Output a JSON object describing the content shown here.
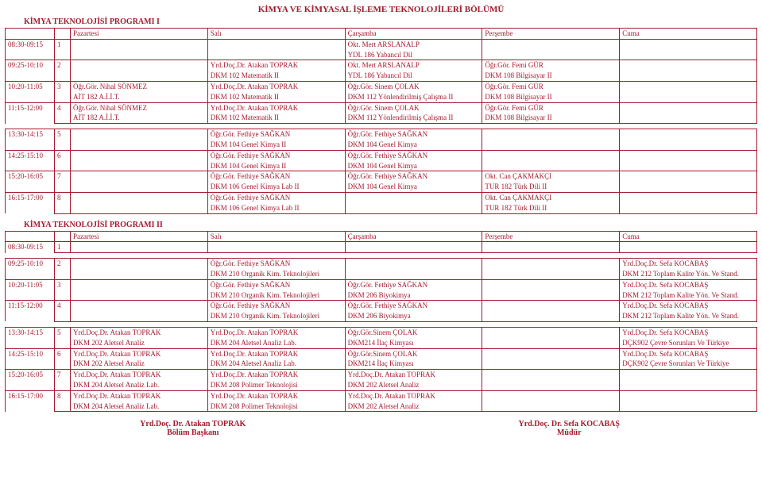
{
  "colors": {
    "ink": "#a6192e",
    "bg": "#ffffff"
  },
  "dept": "KİMYA VE KİMYASAL İŞLEME TEKNOLOJİLERİ BÖLÜMÜ",
  "days": [
    "Pazartesi",
    "Salı",
    "Çarşamba",
    "Perşembe",
    "Cuma"
  ],
  "program1": {
    "title": "KİMYA TEKNOLOJİSİ PROGRAMI  I",
    "blocks": [
      [
        {
          "time": "08:30-09:15",
          "num": "1",
          "cells": [
            [
              "",
              ""
            ],
            [
              "",
              ""
            ],
            [
              "Okt. Mert ARSLANALP",
              "YDL 186 Yabancıl Dil"
            ],
            [
              "",
              ""
            ],
            [
              "",
              ""
            ]
          ]
        },
        {
          "time": "09:25-10:10",
          "num": "2",
          "cells": [
            [
              "",
              ""
            ],
            [
              "Yrd.Doç.Dr. Atakan TOPRAK",
              "DKM 102 Matematik II"
            ],
            [
              "Okt. Mert ARSLANALP",
              "YDL 186 Yabancıl Dil"
            ],
            [
              "Öğr.Gör. Femi GÜR",
              "DKM 108 Bilgisayar II"
            ],
            [
              "",
              ""
            ]
          ]
        },
        {
          "time": "10:20-11:05",
          "num": "3",
          "cells": [
            [
              "Öğr.Gör. Nihal SÖNMEZ",
              "AİT 182 A.İ.İ.T."
            ],
            [
              "Yrd.Doç.Dr. Atakan TOPRAK",
              "DKM 102 Matematik II"
            ],
            [
              "Öğr.Gör. Sinem ÇOLAK",
              "DKM 112 Yönlendirilmiş Çalışma II"
            ],
            [
              "Öğr.Gör. Femi GÜR",
              "DKM 108 Bilgisayar II"
            ],
            [
              "",
              ""
            ]
          ]
        },
        {
          "time": "11:15-12:00",
          "num": "4",
          "cells": [
            [
              "Öğr.Gör. Nihal SÖNMEZ",
              "AİT 182 A.İ.İ.T."
            ],
            [
              "Yrd.Doç.Dr. Atakan TOPRAK",
              "DKM 102 Matematik II"
            ],
            [
              "Öğr.Gör. Sinem ÇOLAK",
              "DKM 112 Yönlendirilmiş Çalışma II"
            ],
            [
              "Öğr.Gör. Femi GÜR",
              "DKM 108 Bilgisayar II"
            ],
            [
              "",
              ""
            ]
          ]
        }
      ],
      [
        {
          "time": "13:30-14:15",
          "num": "5",
          "cells": [
            [
              "",
              ""
            ],
            [
              "Öğr.Gör. Fethiye SAĞKAN",
              "DKM 104 Genel Kimya II"
            ],
            [
              "Öğr.Gör. Fethiye SAĞKAN",
              "DKM 104 Genel Kimya"
            ],
            [
              "",
              ""
            ],
            [
              "",
              ""
            ]
          ]
        },
        {
          "time": "14:25-15:10",
          "num": "6",
          "cells": [
            [
              "",
              ""
            ],
            [
              "Öğr.Gör. Fethiye SAĞKAN",
              "DKM 104 Genel Kimya II"
            ],
            [
              "Öğr.Gör. Fethiye SAĞKAN",
              "DKM 104 Genel Kimya"
            ],
            [
              "",
              ""
            ],
            [
              "",
              ""
            ]
          ]
        },
        {
          "time": "15:20-16:05",
          "num": "7",
          "cells": [
            [
              "",
              ""
            ],
            [
              "Öğr.Gör. Fethiye SAĞKAN",
              "DKM 106 Genel Kimya Lab II"
            ],
            [
              "Öğr.Gör. Fethiye SAĞKAN",
              "DKM 104 Genel Kimya"
            ],
            [
              "Okt. Can ÇAKMAKÇI",
              "TUR 182 Türk Dili II"
            ],
            [
              "",
              ""
            ]
          ]
        },
        {
          "time": "16:15-17:00",
          "num": "8",
          "cells": [
            [
              "",
              ""
            ],
            [
              "Öğr.Gör. Fethiye SAĞKAN",
              "DKM 106 Genel Kimya Lab II"
            ],
            [
              "",
              ""
            ],
            [
              "Okt. Can ÇAKMAKÇI",
              "TUR 182 Türk Dili II"
            ],
            [
              "",
              ""
            ]
          ]
        }
      ]
    ]
  },
  "program2": {
    "title": "KİMYA TEKNOLOJİSİ PROGRAMI  II",
    "blocks": [
      [
        {
          "time": "08:30-09:15",
          "num": "1",
          "cells": [
            [
              "",
              ""
            ],
            [
              "",
              ""
            ],
            [
              "",
              ""
            ],
            [
              "",
              ""
            ],
            [
              "",
              ""
            ]
          ]
        }
      ],
      [
        {
          "time": "09:25-10:10",
          "num": "2",
          "cells": [
            [
              "",
              ""
            ],
            [
              "Öğr.Gör. Fethiye SAĞKAN",
              "DKM 210 Organik Kim. Teknolojileri"
            ],
            [
              "",
              ""
            ],
            [
              "",
              ""
            ],
            [
              "Yrd.Doç.Dr. Sefa KOCABAŞ",
              "DKM 212 Toplam Kalite Yön. Ve Stand."
            ]
          ]
        },
        {
          "time": "10:20-11:05",
          "num": "3",
          "cells": [
            [
              "",
              ""
            ],
            [
              "Öğr.Gör. Fethiye SAĞKAN",
              "DKM 210 Organik Kim. Teknolojileri"
            ],
            [
              "Öğr.Gör. Fethiye SAĞKAN",
              "DKM 206 Biyokimya"
            ],
            [
              "",
              ""
            ],
            [
              "Yrd.Doç.Dr. Sefa KOCABAŞ",
              "DKM 212 Toplam Kalite Yön. Ve Stand."
            ]
          ]
        },
        {
          "time": "11:15-12:00",
          "num": "4",
          "cells": [
            [
              "",
              ""
            ],
            [
              "Öğr.Gör. Fethiye SAĞKAN",
              "DKM 210 Organik Kim. Teknolojileri"
            ],
            [
              "Öğr.Gör. Fethiye SAĞKAN",
              "DKM 206 Biyokimya"
            ],
            [
              "",
              ""
            ],
            [
              "Yrd.Doç.Dr. Sefa KOCABAŞ",
              "DKM 212 Toplam Kalite Yön. Ve Stand."
            ]
          ]
        }
      ],
      [
        {
          "time": "13:30-14:15",
          "num": "5",
          "cells": [
            [
              "Yrd.Doç.Dr. Atakan TOPRAK",
              "DKM 202 Aletsel Analiz"
            ],
            [
              "Yrd.Doç.Dr. Atakan TOPRAK",
              "DKM 204 Aletsel Analiz Lab."
            ],
            [
              "Öğr.Gör.Sinem ÇOLAK",
              "DKM214 İlaç Kimyası"
            ],
            [
              "",
              ""
            ],
            [
              "Yrd.Doç.Dr. Sefa KOCABAŞ",
              "DÇK902 Çevre Sorunları Ve Türkiye"
            ]
          ]
        },
        {
          "time": "14:25-15:10",
          "num": "6",
          "cells": [
            [
              "Yrd.Doç.Dr. Atakan TOPRAK",
              "DKM 202 Aletsel Analiz"
            ],
            [
              "Yrd.Doç.Dr. Atakan TOPRAK",
              "DKM 204 Aletsel Analiz Lab."
            ],
            [
              "Öğr.Gör.Sinem ÇOLAK",
              "DKM214 İlaç Kimyası"
            ],
            [
              "",
              ""
            ],
            [
              "Yrd.Doç.Dr. Sefa KOCABAŞ",
              "DÇK902 Çevre Sorunları Ve Türkiye"
            ]
          ]
        },
        {
          "time": "15:20-16:05",
          "num": "7",
          "cells": [
            [
              "Yrd.Doç.Dr. Atakan TOPRAK",
              "DKM 204 Aletsel Analiz Lab."
            ],
            [
              "Yrd.Doç.Dr. Atakan TOPRAK",
              "DKM 208 Polimer Teknolojisi"
            ],
            [
              "Yrd.Doç.Dr. Atakan TOPRAK",
              "DKM 202 Aletsel Analiz"
            ],
            [
              "",
              ""
            ],
            [
              "",
              ""
            ]
          ]
        },
        {
          "time": "16:15-17:00",
          "num": "8",
          "cells": [
            [
              "Yrd.Doç.Dr. Atakan TOPRAK",
              "DKM 204 Aletsel Analiz Lab."
            ],
            [
              "Yrd.Doç.Dr. Atakan TOPRAK",
              "DKM 208 Polimer Teknolojisi"
            ],
            [
              "Yrd.Doç.Dr. Atakan TOPRAK",
              "DKM 202 Aletsel Analiz"
            ],
            [
              "",
              ""
            ],
            [
              "",
              ""
            ]
          ]
        }
      ]
    ]
  },
  "footer": {
    "left": [
      "Yrd.Doç. Dr. Atakan TOPRAK",
      "Bölüm Başkanı"
    ],
    "right": [
      "Yrd.Doç. Dr. Sefa KOCABAŞ",
      "Müdür"
    ]
  }
}
